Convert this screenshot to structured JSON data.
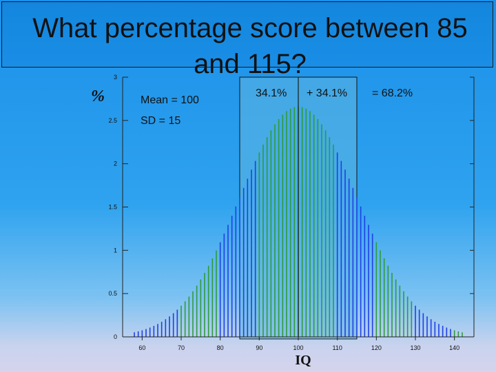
{
  "slide": {
    "title": "What percentage score between 85 and 115?"
  },
  "annotations": {
    "mean": "Mean = 100",
    "sd": "SD = 15",
    "left_pct": "34.1%",
    "right_pct": "+ 34.1%",
    "total": "= 68.2%"
  },
  "colors": {
    "green": "#2f9a3c",
    "blue": "#1f3fe6",
    "highlight_fill": "#5fb6e0",
    "axis": "#222222"
  },
  "chart_data": {
    "type": "bar",
    "title": "",
    "xlabel": "IQ",
    "ylabel": "%",
    "x_ticks": [
      "60",
      "70",
      "80",
      "90",
      "100",
      "110",
      "120",
      "130",
      "140"
    ],
    "y_ticks": [
      "0",
      "0.5",
      "1",
      "1.5",
      "2",
      "2.5",
      "3"
    ],
    "xlim": [
      55,
      145
    ],
    "ylim": [
      0,
      3
    ],
    "distribution": {
      "mean": 100,
      "sd": 15,
      "bar_width_iq": 1
    },
    "highlight_range": [
      85,
      115
    ],
    "grid": false
  }
}
